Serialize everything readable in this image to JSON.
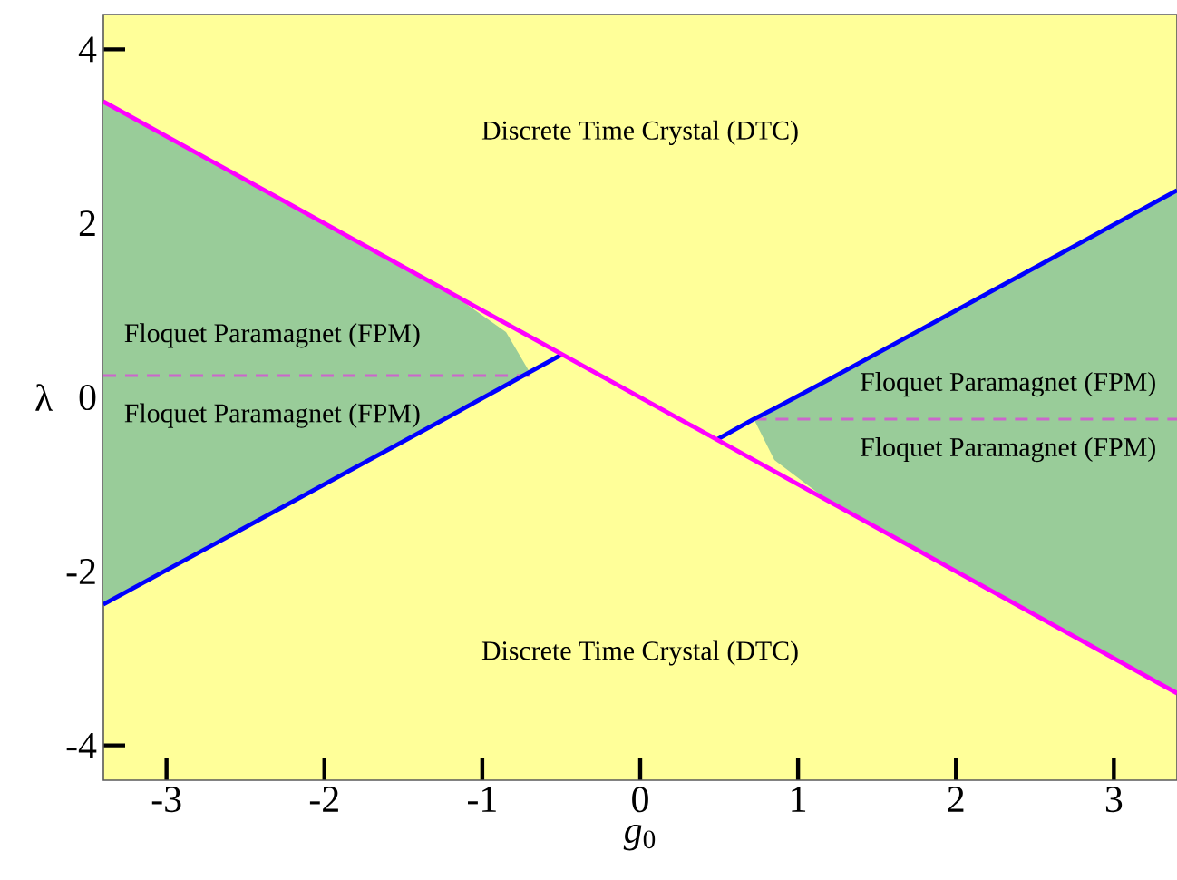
{
  "chart_data": {
    "type": "line",
    "xlabel": "*g*$_{0}$",
    "ylabel": "λ",
    "xlim": [
      -3.4,
      3.4
    ],
    "ylim": [
      -4.4,
      4.4
    ],
    "xticks": [
      -3,
      -2,
      -1,
      0,
      1,
      2,
      3
    ],
    "yticks": [
      -4,
      -2,
      0,
      2,
      4
    ],
    "series": [
      {
        "color": "#cc66cc",
        "line_style": "dashed",
        "x": [
          -3.4,
          -0.7
        ],
        "values": [
          0.25,
          0.25
        ]
      },
      {
        "color": "#cc66cc",
        "line_style": "dashed",
        "x": [
          0.72,
          3.4
        ],
        "values": [
          -0.25,
          -0.25
        ]
      },
      {
        "color": "#0000ff",
        "x": [
          -3.4,
          -1.2,
          -0.85,
          -0.7,
          -0.49
        ],
        "values": [
          -2.38,
          -0.21,
          0.14,
          0.29,
          0.5
        ],
        "lower": [
          -2.38,
          -0.21,
          0.14,
          0.29,
          null
        ],
        "upper": [
          3.4,
          1.2,
          0.75,
          0.29,
          null
        ]
      },
      {
        "color": "#0000ff",
        "x": [
          0.49,
          0.72,
          0.85,
          1.2,
          3.4
        ],
        "values": [
          -0.48,
          -0.25,
          -0.13,
          0.21,
          2.38
        ],
        "lower": [
          null,
          -0.25,
          -0.72,
          -1.2,
          -3.4
        ],
        "upper": [
          null,
          -0.25,
          -0.13,
          0.21,
          2.38
        ]
      },
      {
        "color": "#ff00ff",
        "x": [
          -3.4,
          3.4
        ],
        "values": [
          3.4,
          -3.4
        ]
      }
    ],
    "annotations": [
      "Discrete Time Crystal (DTC)",
      "Discrete Time Crystal (DTC)",
      "Floquet Paramagnet (FPM)",
      "Floquet Paramagnet (FPM)",
      "Floquet Paramagnet (FPM)",
      "Floquet Paramagnet (FPM)"
    ]
  }
}
